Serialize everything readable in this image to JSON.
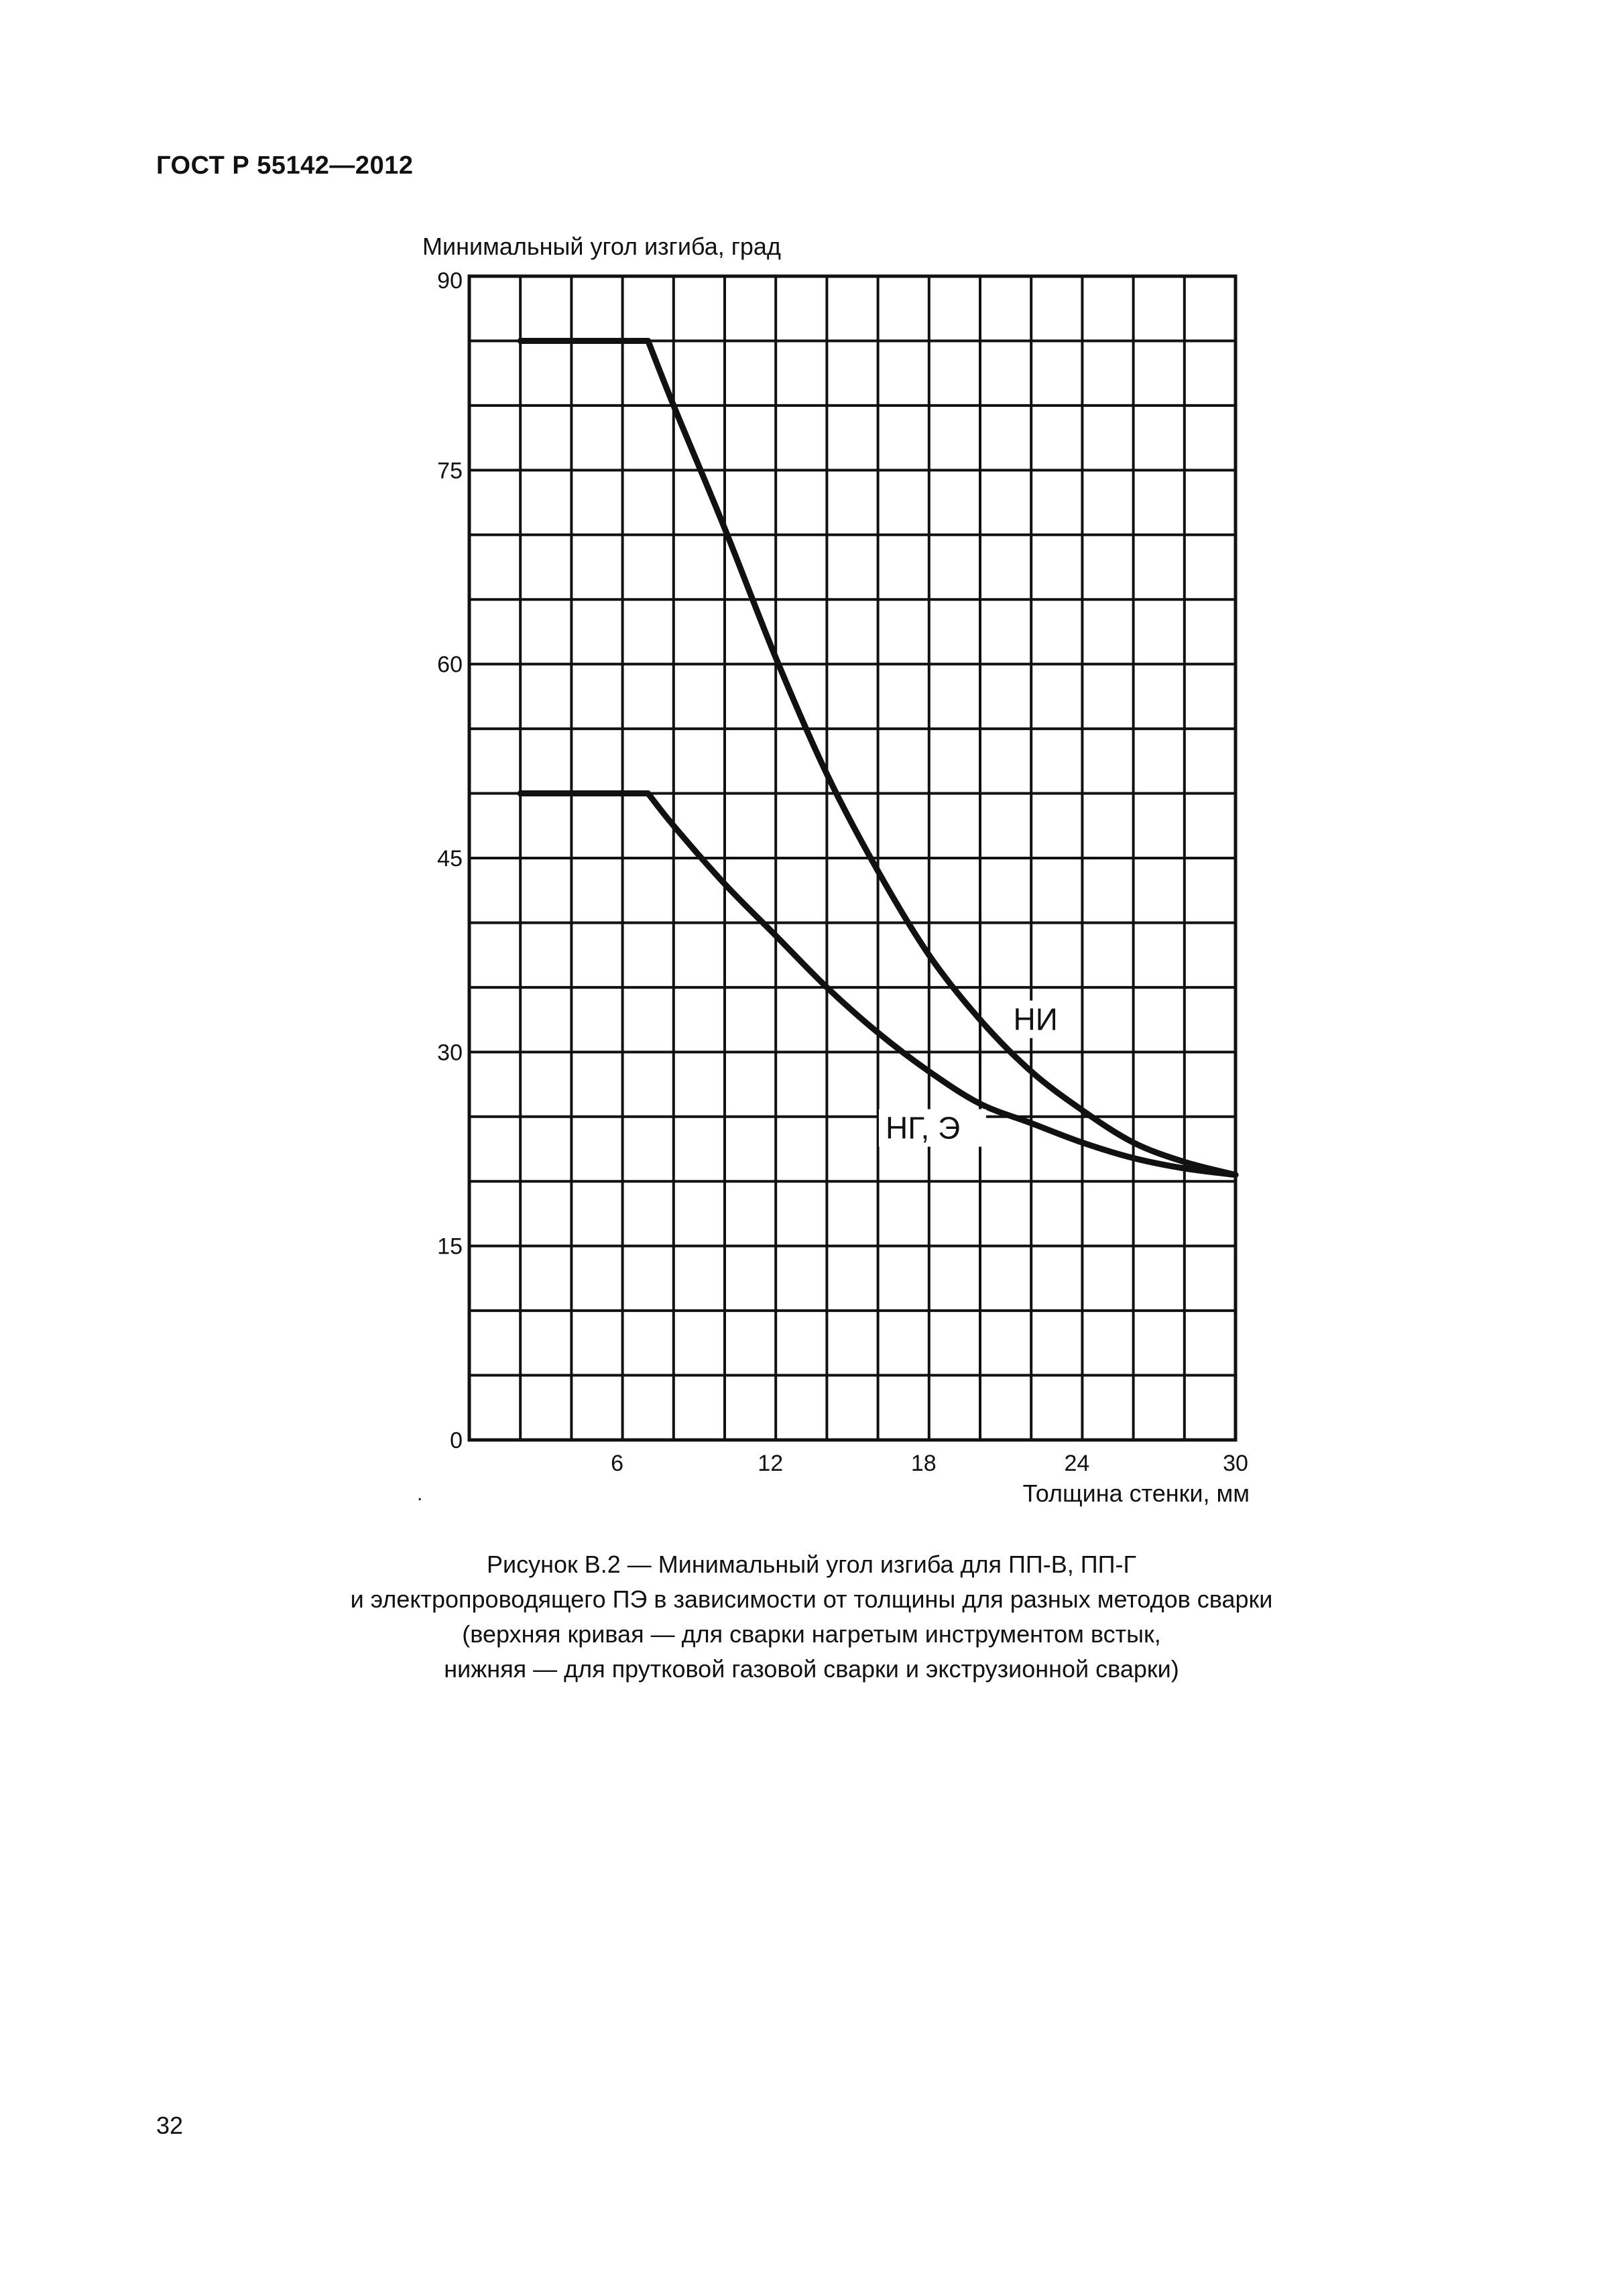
{
  "header": {
    "doc_code": "ГОСТ Р 55142—2012"
  },
  "page_number": "32",
  "stray_mark": ".",
  "caption": {
    "lines": [
      "Рисунок В.2 — Минимальный угол изгиба для ПП-В, ПП-Г",
      "и электропроводящего ПЭ в зависимости от толщины для разных методов сварки",
      "(верхняя кривая — для сварки нагретым инструментом встык,",
      "нижняя — для прутковой газовой сварки и экструзионной сварки)"
    ]
  },
  "chart_data": {
    "type": "line",
    "xlabel": "Толщина стенки, мм",
    "ylabel": "Минимальный угол изгиба, град",
    "xlim": [
      0,
      30
    ],
    "ylim": [
      0,
      90
    ],
    "x_ticks": [
      "6",
      "12",
      "18",
      "24",
      "30"
    ],
    "y_ticks": [
      "0",
      "15",
      "30",
      "45",
      "60",
      "75",
      "90"
    ],
    "grid": true,
    "grid_x_step": 2,
    "grid_y_step": 5,
    "line_color": "#111111",
    "series": [
      {
        "name": "НИ",
        "x": [
          2,
          7,
          8,
          10,
          12,
          14,
          16,
          18,
          20,
          22,
          24,
          26,
          28,
          30
        ],
        "y": [
          85,
          85,
          80,
          70.5,
          60.5,
          51.5,
          44,
          37.5,
          32.5,
          28.5,
          25.5,
          23,
          21.5,
          20.5
        ]
      },
      {
        "name": "НГ, Э",
        "x": [
          2,
          7,
          8,
          10,
          12,
          14,
          16,
          18,
          20,
          22,
          24,
          26,
          28,
          30
        ],
        "y": [
          50,
          50,
          47.5,
          43,
          39,
          35,
          31.5,
          28.5,
          26,
          24.5,
          23,
          21.8,
          21,
          20.5
        ]
      }
    ],
    "annotations": [
      {
        "text": "НИ",
        "x": 21.3,
        "y": 31.7
      },
      {
        "text": "НГ, Э",
        "x": 16.3,
        "y": 23.3
      }
    ]
  }
}
